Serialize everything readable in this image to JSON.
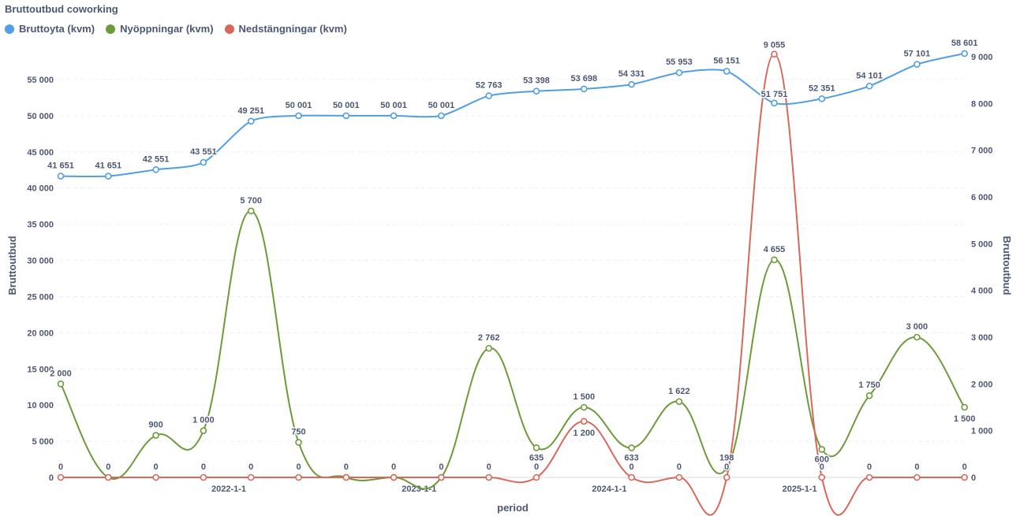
{
  "chart_data": {
    "type": "line",
    "title": "Bruttoutbud coworking",
    "xlabel": "period",
    "ylabel_left": "Bruttoutbud",
    "ylabel_right": "Bruttoutbud",
    "ylim_left": [
      0,
      58000
    ],
    "ylim_right": [
      0,
      9100
    ],
    "left_ticks": [
      0,
      5000,
      10000,
      15000,
      20000,
      25000,
      30000,
      35000,
      40000,
      45000,
      50000,
      55000
    ],
    "left_tick_labels": [
      "0",
      "5 000",
      "10 000",
      "15 000",
      "20 000",
      "25 000",
      "30 000",
      "35 000",
      "40 000",
      "45 000",
      "50 000",
      "55 000"
    ],
    "right_ticks": [
      0,
      1000,
      2000,
      3000,
      4000,
      5000,
      6000,
      7000,
      8000,
      9000
    ],
    "right_tick_labels": [
      "0",
      "1 000",
      "2 000",
      "3 000",
      "4 000",
      "5 000",
      "6 000",
      "7 000",
      "8 000",
      "9 000"
    ],
    "x_tick_labels": [
      "2022-1-1",
      "2023-1-1",
      "2024-1-1",
      "2025-1-1"
    ],
    "x_tick_indices": [
      3,
      7,
      11,
      15
    ],
    "series": [
      {
        "name": "Bruttoyta (kvm)",
        "color": "#509ee3",
        "axis": "left",
        "values": [
          41651,
          41651,
          42551,
          43551,
          49251,
          50001,
          50001,
          50001,
          50001,
          52763,
          53398,
          53698,
          54331,
          55953,
          56151,
          51751,
          52351,
          54101,
          57101,
          58601
        ],
        "labels": [
          "41 651",
          "41 651",
          "42 551",
          "43 551",
          "49 251",
          "50 001",
          "50 001",
          "50 001",
          "50 001",
          "52 763",
          "53 398",
          "53 698",
          "54 331",
          "55 953",
          "56 151",
          "51 751",
          "52 351",
          "54 101",
          "57 101",
          "58 601"
        ]
      },
      {
        "name": "Nyöppningar (kvm)",
        "color": "#6e9a3a",
        "axis": "right",
        "values": [
          2000,
          0,
          900,
          1000,
          5700,
          750,
          0,
          0,
          0,
          2762,
          635,
          1500,
          633,
          1622,
          198,
          4655,
          600,
          1750,
          3000,
          1500
        ],
        "labels": [
          "2 000",
          "0",
          "900",
          "1 000",
          "5 700",
          "750",
          "0",
          "0",
          "0",
          "2 762",
          "635",
          "1 500",
          "633",
          "1 622",
          "198",
          "4 655",
          "600",
          "1 750",
          "3 000",
          "1 500"
        ]
      },
      {
        "name": "Nedstängningar (kvm)",
        "color": "#d9685a",
        "axis": "right",
        "values": [
          0,
          0,
          0,
          0,
          0,
          0,
          0,
          0,
          0,
          0,
          0,
          1200,
          0,
          0,
          0,
          9055,
          0,
          0,
          0,
          0
        ],
        "labels": [
          "0",
          "0",
          "0",
          "0",
          "0",
          "0",
          "0",
          "0",
          "0",
          "0",
          "0",
          "1 200",
          "0",
          "0",
          "0",
          "9 055",
          "0",
          "0",
          "0",
          "0"
        ]
      }
    ]
  },
  "legend_colors": {
    "blue": "#509ee3",
    "green": "#6e9a3a",
    "red": "#d9685a"
  }
}
